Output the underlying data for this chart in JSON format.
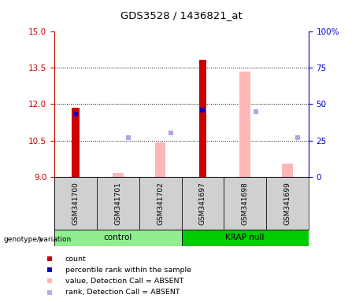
{
  "title": "GDS3528 / 1436821_at",
  "samples": [
    "GSM341700",
    "GSM341701",
    "GSM341702",
    "GSM341697",
    "GSM341698",
    "GSM341699"
  ],
  "ylim_left": [
    9,
    15
  ],
  "ylim_right": [
    0,
    100
  ],
  "yticks_left": [
    9,
    10.5,
    12,
    13.5,
    15
  ],
  "yticks_right": [
    0,
    25,
    50,
    75,
    100
  ],
  "ytick_labels_right": [
    "0",
    "25",
    "50",
    "75",
    "100%"
  ],
  "red_bars": {
    "GSM341700": 11.85,
    "GSM341701": null,
    "GSM341702": null,
    "GSM341697": 13.85,
    "GSM341698": null,
    "GSM341699": null
  },
  "blue_squares_pct": {
    "GSM341700": 43,
    "GSM341701": null,
    "GSM341702": null,
    "GSM341697": 46,
    "GSM341698": null,
    "GSM341699": null
  },
  "pink_bars": {
    "GSM341700": null,
    "GSM341701": 9.15,
    "GSM341702": 10.42,
    "GSM341697": null,
    "GSM341698": 13.35,
    "GSM341699": 9.55
  },
  "lavender_squares_pct": {
    "GSM341700": null,
    "GSM341701": 27,
    "GSM341702": 30,
    "GSM341697": null,
    "GSM341698": 45,
    "GSM341699": 27
  },
  "bar_width": 0.18,
  "bar_bottom": 9,
  "left_axis_color": "#cc0000",
  "right_axis_color": "#0000cc",
  "dotted_lines": [
    10.5,
    12,
    13.5
  ],
  "control_color": "#90ee90",
  "krap_color": "#00cc00",
  "sample_box_color": "#d0d0d0",
  "legend_items": [
    {
      "color": "#cc0000",
      "label": "count"
    },
    {
      "color": "#0000cc",
      "label": "percentile rank within the sample"
    },
    {
      "color": "#ffb6b6",
      "label": "value, Detection Call = ABSENT"
    },
    {
      "color": "#b0b0e8",
      "label": "rank, Detection Call = ABSENT"
    }
  ],
  "group_label": "genotype/variation"
}
